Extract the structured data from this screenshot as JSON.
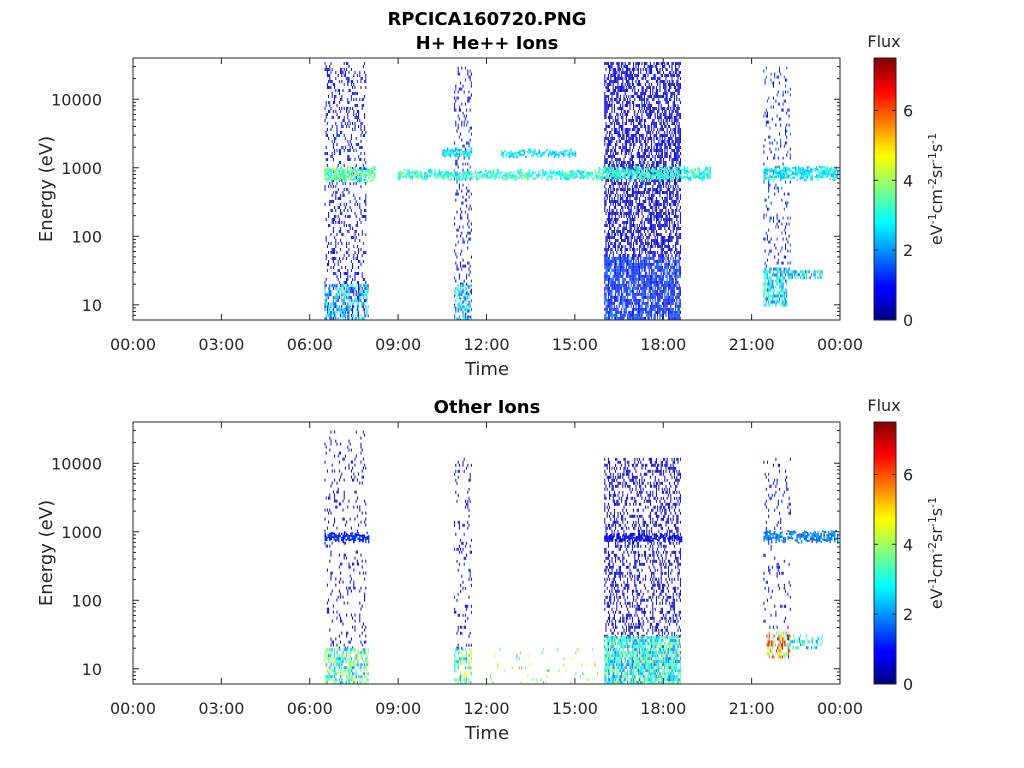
{
  "figure": {
    "title_line1": "RPCICA160720.PNG"
  },
  "chart_data": [
    {
      "type": "heatmap",
      "title": "H+ He++ Ions",
      "xlabel": "Time",
      "ylabel": "Energy (eV)",
      "xlim": [
        0,
        24
      ],
      "x_ticks": [
        "00:00",
        "03:00",
        "06:00",
        "09:00",
        "12:00",
        "15:00",
        "18:00",
        "21:00",
        "00:00"
      ],
      "y_scale": "log",
      "ylim": [
        6,
        40000
      ],
      "y_ticks": [
        10,
        100,
        1000,
        10000
      ],
      "y_tick_labels": [
        "10",
        "100",
        "1000",
        "10000"
      ],
      "colorbar": {
        "title": "Flux",
        "range": [
          0,
          7.5
        ],
        "ticks": [
          "0",
          "2",
          "4",
          "6"
        ],
        "label": "eV-1cm-2sr-1s-1",
        "colormap": "jet"
      },
      "regions": [
        {
          "t": [
            6.5,
            7.9
          ],
          "e": [
            6,
            35000
          ],
          "flux": 0.9,
          "density": 0.22
        },
        {
          "t": [
            6.5,
            8.0
          ],
          "e": [
            6,
            20
          ],
          "flux": 2.2,
          "density": 0.5
        },
        {
          "t": [
            10.9,
            11.5
          ],
          "e": [
            6,
            30000
          ],
          "flux": 1.0,
          "density": 0.2
        },
        {
          "t": [
            10.9,
            11.5
          ],
          "e": [
            6,
            20
          ],
          "flux": 2.6,
          "density": 0.5
        },
        {
          "t": [
            16.0,
            18.6
          ],
          "e": [
            50,
            35000
          ],
          "flux": 0.6,
          "density": 0.55
        },
        {
          "t": [
            16.0,
            18.6
          ],
          "e": [
            6,
            50
          ],
          "flux": 1.2,
          "density": 0.8
        },
        {
          "t": [
            21.4,
            22.3
          ],
          "e": [
            30,
            30000
          ],
          "flux": 1.2,
          "density": 0.15
        },
        {
          "t": [
            21.4,
            22.2
          ],
          "e": [
            10,
            35
          ],
          "flux": 2.6,
          "density": 0.7
        },
        {
          "t": [
            22.2,
            23.4
          ],
          "e": [
            25,
            32
          ],
          "flux": 2.6,
          "density": 0.6
        }
      ],
      "bands": [
        {
          "t": [
            6.5,
            8.2
          ],
          "e": [
            650,
            1000
          ],
          "flux": 3.4
        },
        {
          "t": [
            9.0,
            15.8
          ],
          "e": [
            700,
            900
          ],
          "flux": 3.0
        },
        {
          "t": [
            15.8,
            19.6
          ],
          "e": [
            700,
            1000
          ],
          "flux": 3.0
        },
        {
          "t": [
            21.4,
            23.9
          ],
          "e": [
            700,
            1000
          ],
          "flux": 2.7
        },
        {
          "t": [
            10.5,
            11.5
          ],
          "e": [
            1500,
            1900
          ],
          "flux": 2.6
        },
        {
          "t": [
            12.5,
            15.0
          ],
          "e": [
            1500,
            1800
          ],
          "flux": 2.6
        }
      ]
    },
    {
      "type": "heatmap",
      "title": "Other Ions",
      "xlabel": "Time",
      "ylabel": "Energy (eV)",
      "xlim": [
        0,
        24
      ],
      "x_ticks": [
        "00:00",
        "03:00",
        "06:00",
        "09:00",
        "12:00",
        "15:00",
        "18:00",
        "21:00",
        "00:00"
      ],
      "y_scale": "log",
      "ylim": [
        6,
        40000
      ],
      "y_ticks": [
        10,
        100,
        1000,
        10000
      ],
      "y_tick_labels": [
        "10",
        "100",
        "1000",
        "10000"
      ],
      "colorbar": {
        "title": "Flux",
        "range": [
          0,
          7.5
        ],
        "ticks": [
          "0",
          "2",
          "4",
          "6"
        ],
        "label": "eV-1cm-2sr-1s-1",
        "colormap": "jet"
      },
      "regions": [
        {
          "t": [
            6.5,
            7.9
          ],
          "e": [
            20,
            30000
          ],
          "flux": 0.7,
          "density": 0.12
        },
        {
          "t": [
            6.5,
            8.0
          ],
          "e": [
            6,
            20
          ],
          "flux": 3.2,
          "density": 0.6
        },
        {
          "t": [
            10.9,
            11.5
          ],
          "e": [
            20,
            12000
          ],
          "flux": 0.8,
          "density": 0.12
        },
        {
          "t": [
            10.9,
            11.5
          ],
          "e": [
            6,
            20
          ],
          "flux": 3.6,
          "density": 0.5
        },
        {
          "t": [
            16.0,
            18.6
          ],
          "e": [
            30,
            12000
          ],
          "flux": 0.5,
          "density": 0.35
        },
        {
          "t": [
            16.0,
            18.6
          ],
          "e": [
            6,
            30
          ],
          "flux": 2.9,
          "density": 0.85
        },
        {
          "t": [
            12.0,
            15.9
          ],
          "e": [
            6,
            20
          ],
          "flux": 4.0,
          "density": 0.05
        },
        {
          "t": [
            21.4,
            22.3
          ],
          "e": [
            40,
            12000
          ],
          "flux": 0.9,
          "density": 0.1
        },
        {
          "t": [
            21.5,
            22.3
          ],
          "e": [
            15,
            35
          ],
          "flux": 5.0,
          "density": 0.6
        },
        {
          "t": [
            22.2,
            23.4
          ],
          "e": [
            20,
            32
          ],
          "flux": 2.8,
          "density": 0.4
        }
      ],
      "bands": [
        {
          "t": [
            6.5,
            8.0
          ],
          "e": [
            750,
            950
          ],
          "flux": 1.2
        },
        {
          "t": [
            16.0,
            18.6
          ],
          "e": [
            760,
            900
          ],
          "flux": 0.8
        },
        {
          "t": [
            21.4,
            23.9
          ],
          "e": [
            750,
            1000
          ],
          "flux": 1.8
        }
      ]
    }
  ]
}
